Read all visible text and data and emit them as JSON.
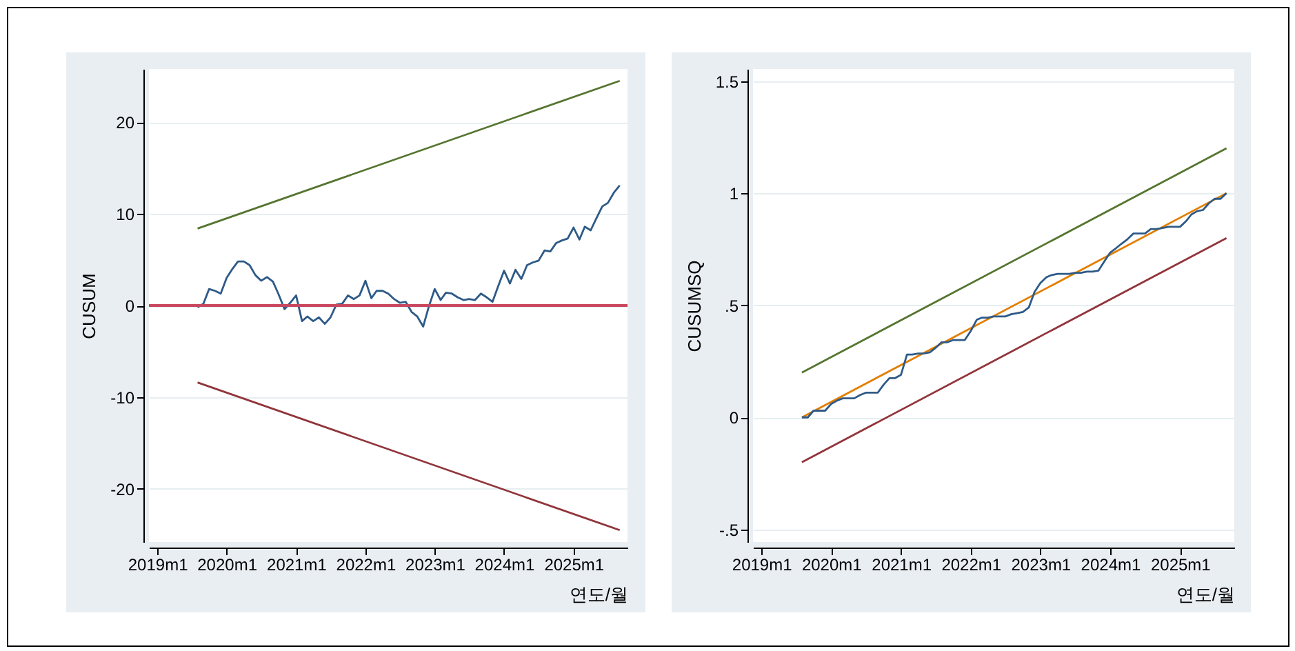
{
  "chart_data": [
    {
      "type": "line",
      "ylabel": "CUSUM",
      "xlabel": "연도/월",
      "grid": "y",
      "xlim": [
        "2018-11-18",
        "2025-10-12"
      ],
      "ylim": [
        -25.8,
        25.8
      ],
      "xticks": [
        {
          "value": "2019-01",
          "label": "2019m1"
        },
        {
          "value": "2020-01",
          "label": "2020m1"
        },
        {
          "value": "2021-01",
          "label": "2021m1"
        },
        {
          "value": "2022-01",
          "label": "2022m1"
        },
        {
          "value": "2023-01",
          "label": "2023m1"
        },
        {
          "value": "2024-01",
          "label": "2024m1"
        },
        {
          "value": "2025-01",
          "label": "2025m1"
        }
      ],
      "yticks": [
        -20,
        -10,
        0,
        10,
        20
      ],
      "ref_lines": [
        {
          "axis": "y",
          "value": 0,
          "color": "#c9475e"
        }
      ],
      "series": [
        {
          "color": "#2e5a87",
          "x": [
            "2019-08",
            "2019-09",
            "2019-10",
            "2019-11",
            "2019-12",
            "2020-01",
            "2020-02",
            "2020-03",
            "2020-04",
            "2020-05",
            "2020-06",
            "2020-07",
            "2020-08",
            "2020-09",
            "2020-10",
            "2020-11",
            "2020-12",
            "2021-01",
            "2021-02",
            "2021-03",
            "2021-04",
            "2021-05",
            "2021-06",
            "2021-07",
            "2021-08",
            "2021-09",
            "2021-10",
            "2021-11",
            "2021-12",
            "2022-01",
            "2022-02",
            "2022-03",
            "2022-04",
            "2022-05",
            "2022-06",
            "2022-07",
            "2022-08",
            "2022-09",
            "2022-10",
            "2022-11",
            "2022-12",
            "2023-01",
            "2023-02",
            "2023-03",
            "2023-04",
            "2023-05",
            "2023-06",
            "2023-07",
            "2023-08",
            "2023-09",
            "2023-10",
            "2023-11",
            "2023-12",
            "2024-01",
            "2024-02",
            "2024-03",
            "2024-04",
            "2024-05",
            "2024-06",
            "2024-07",
            "2024-08",
            "2024-09",
            "2024-10",
            "2024-11",
            "2024-12",
            "2025-01",
            "2025-02",
            "2025-03",
            "2025-04",
            "2025-05",
            "2025-06",
            "2025-07",
            "2025-08",
            "2025-09"
          ],
          "values": [
            -0.2,
            0.2,
            1.8,
            1.6,
            1.3,
            3.0,
            4.0,
            4.8,
            4.8,
            4.4,
            3.3,
            2.7,
            3.1,
            2.6,
            1.2,
            -0.4,
            0.3,
            1.1,
            -1.7,
            -1.2,
            -1.7,
            -1.3,
            -2.0,
            -1.3,
            0.1,
            0.2,
            1.1,
            0.7,
            1.1,
            2.7,
            0.8,
            1.6,
            1.6,
            1.3,
            0.7,
            0.3,
            0.4,
            -0.7,
            -1.2,
            -2.3,
            -0.1,
            1.8,
            0.6,
            1.4,
            1.3,
            0.9,
            0.6,
            0.7,
            0.6,
            1.3,
            0.9,
            0.4,
            2.1,
            3.8,
            2.4,
            3.9,
            2.9,
            4.4,
            4.7,
            4.9,
            6.0,
            5.9,
            6.8,
            7.1,
            7.3,
            8.5,
            7.2,
            8.6,
            8.2,
            9.5,
            10.8,
            11.2,
            12.3,
            13.1
          ]
        },
        {
          "color": "#55752f",
          "x": [
            "2019-08",
            "2025-09"
          ],
          "values": [
            8.4,
            24.5
          ]
        },
        {
          "color": "#90353b",
          "x": [
            "2019-08",
            "2025-09"
          ],
          "values": [
            -8.4,
            -24.5
          ]
        }
      ]
    },
    {
      "type": "line",
      "ylabel": "CUSUMSQ",
      "xlabel": "연도/월",
      "grid": "y",
      "xlim": [
        "2018-11-18",
        "2025-10-12"
      ],
      "ylim": [
        -0.556,
        1.554
      ],
      "xticks": [
        {
          "value": "2019-01",
          "label": "2019m1"
        },
        {
          "value": "2020-01",
          "label": "2020m1"
        },
        {
          "value": "2021-01",
          "label": "2021m1"
        },
        {
          "value": "2022-01",
          "label": "2022m1"
        },
        {
          "value": "2023-01",
          "label": "2023m1"
        },
        {
          "value": "2024-01",
          "label": "2024m1"
        },
        {
          "value": "2025-01",
          "label": "2025m1"
        }
      ],
      "yticks": [
        {
          "value": -0.5,
          "label": "-.5"
        },
        0,
        {
          "value": 0.5,
          "label": ".5"
        },
        1,
        1.5
      ],
      "series": [
        {
          "color": "#55752f",
          "x": [
            "2019-08",
            "2025-09"
          ],
          "values": [
            0.2,
            1.2
          ]
        },
        {
          "color": "#90353b",
          "x": [
            "2019-08",
            "2025-09"
          ],
          "values": [
            -0.2,
            0.8
          ]
        },
        {
          "color": "#e37e00",
          "x": [
            "2019-08",
            "2025-09"
          ],
          "values": [
            0,
            1
          ]
        },
        {
          "color": "#2e5a87",
          "x": [
            "2019-08",
            "2019-09",
            "2019-10",
            "2019-11",
            "2019-12",
            "2020-01",
            "2020-02",
            "2020-03",
            "2020-04",
            "2020-05",
            "2020-06",
            "2020-07",
            "2020-08",
            "2020-09",
            "2020-10",
            "2020-11",
            "2020-12",
            "2021-01",
            "2021-02",
            "2021-03",
            "2021-04",
            "2021-05",
            "2021-06",
            "2021-07",
            "2021-08",
            "2021-09",
            "2021-10",
            "2021-11",
            "2021-12",
            "2022-01",
            "2022-02",
            "2022-03",
            "2022-04",
            "2022-05",
            "2022-06",
            "2022-07",
            "2022-08",
            "2022-09",
            "2022-10",
            "2022-11",
            "2022-12",
            "2023-01",
            "2023-02",
            "2023-03",
            "2023-04",
            "2023-05",
            "2023-06",
            "2023-07",
            "2023-08",
            "2023-09",
            "2023-10",
            "2023-11",
            "2023-12",
            "2024-01",
            "2024-02",
            "2024-03",
            "2024-04",
            "2024-05",
            "2024-06",
            "2024-07",
            "2024-08",
            "2024-09",
            "2024-10",
            "2024-11",
            "2024-12",
            "2025-01",
            "2025-02",
            "2025-03",
            "2025-04",
            "2025-05",
            "2025-06",
            "2025-07",
            "2025-08",
            "2025-09"
          ],
          "values": [
            0,
            0,
            0.03,
            0.03,
            0.03,
            0.06,
            0.075,
            0.085,
            0.085,
            0.085,
            0.1,
            0.11,
            0.11,
            0.11,
            0.145,
            0.175,
            0.175,
            0.19,
            0.28,
            0.28,
            0.285,
            0.285,
            0.29,
            0.31,
            0.335,
            0.335,
            0.345,
            0.345,
            0.345,
            0.385,
            0.435,
            0.445,
            0.445,
            0.45,
            0.45,
            0.45,
            0.46,
            0.465,
            0.47,
            0.49,
            0.56,
            0.6,
            0.625,
            0.635,
            0.64,
            0.64,
            0.64,
            0.645,
            0.645,
            0.65,
            0.65,
            0.655,
            0.695,
            0.735,
            0.755,
            0.775,
            0.795,
            0.82,
            0.82,
            0.82,
            0.84,
            0.84,
            0.845,
            0.85,
            0.85,
            0.85,
            0.875,
            0.905,
            0.92,
            0.925,
            0.955,
            0.975,
            0.975,
            1.0
          ]
        }
      ]
    }
  ]
}
